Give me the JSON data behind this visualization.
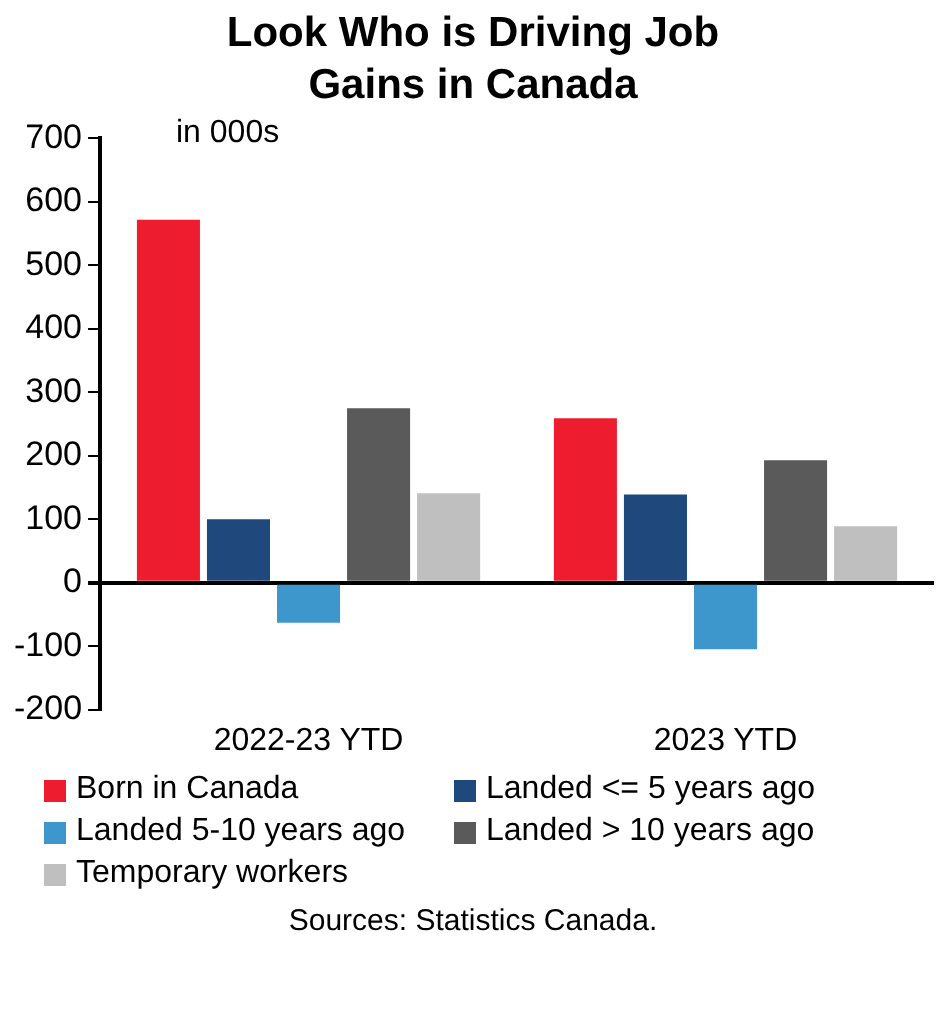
{
  "chart_data": {
    "type": "bar",
    "title": "Look Who is Driving Job Gains in Canada",
    "categories": [
      "2022-23 YTD",
      "2023 YTD"
    ],
    "series": [
      {
        "name": "Born in Canada",
        "color": "#ed1c2e",
        "values": [
          572,
          259
        ]
      },
      {
        "name": "Landed <= 5 years ago",
        "color": "#1f497d",
        "values": [
          100,
          139
        ]
      },
      {
        "name": "Landed 5-10 years ago",
        "color": "#3d97cc",
        "values": [
          -63,
          -105
        ]
      },
      {
        "name": "Landed > 10 years ago",
        "color": "#5a5a5a",
        "values": [
          275,
          193
        ]
      },
      {
        "name": "Temporary workers",
        "color": "#bfbfbf",
        "values": [
          141,
          89
        ]
      }
    ],
    "ylim": [
      -200,
      700
    ],
    "yticks": [
      -200,
      -100,
      0,
      100,
      200,
      300,
      400,
      500,
      600,
      700
    ],
    "annotations": [
      "in 000s",
      "Sources: Statistics Canada."
    ],
    "legend": "bottom"
  }
}
